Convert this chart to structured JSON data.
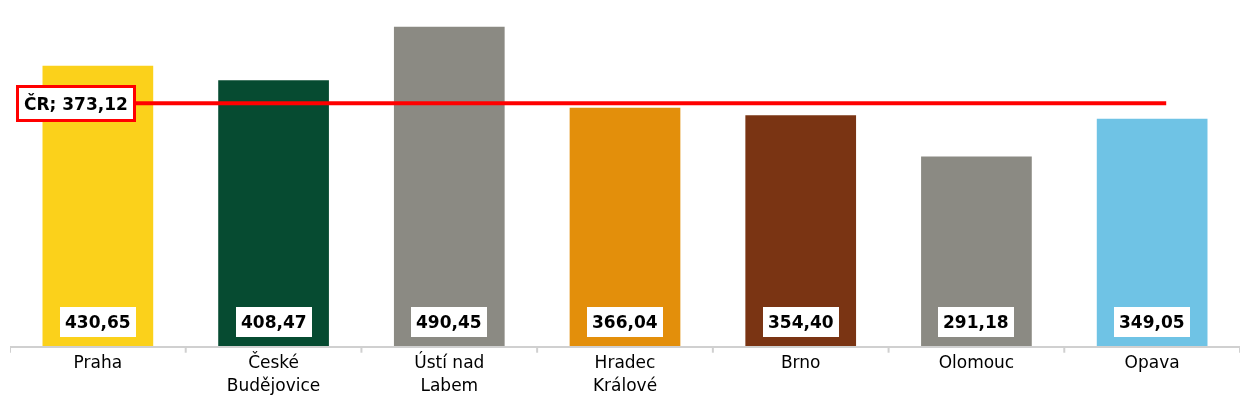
{
  "chart_data": {
    "type": "bar",
    "categories": [
      "Praha",
      "České\nBudějovice",
      "Ústí nad\nLabem",
      "Hradec\nKrálové",
      "Brno",
      "Olomouc",
      "Opava"
    ],
    "values": [
      430.65,
      408.47,
      490.45,
      366.04,
      354.4,
      291.18,
      349.05
    ],
    "value_labels": [
      "430,65",
      "408,47",
      "490,45",
      "366,04",
      "354,40",
      "291,18",
      "349,05"
    ],
    "colors": [
      "#fbd11b",
      "#064b31",
      "#8b8a83",
      "#e38f0b",
      "#7a3413",
      "#8b8a83",
      "#6fc3e5"
    ],
    "ref_lines": [
      {
        "axis": "y",
        "value": 373.12,
        "label": "ČR; 373,12",
        "color": "#ff0000"
      }
    ],
    "legend": false,
    "tick_labels": "x"
  }
}
